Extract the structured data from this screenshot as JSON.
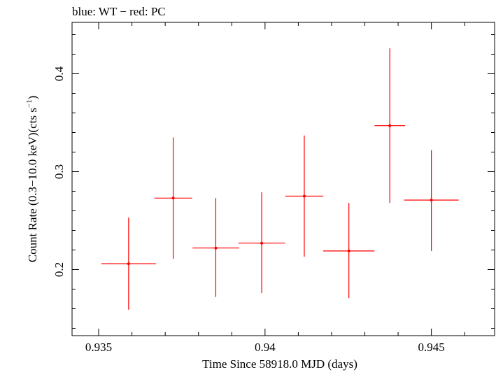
{
  "chart_data": {
    "type": "scatter",
    "title": "blue: WT − red: PC",
    "xlabel": "Time Since 58918.0 MJD (days)",
    "ylabel_main": "Count Rate (0.3−10.0 keV)(cts s",
    "ylabel_sup": "−1",
    "ylabel_close": ")",
    "xlim": [
      0.9342,
      0.9469
    ],
    "ylim": [
      0.1325,
      0.4525
    ],
    "x_ticks": [
      0.935,
      0.94,
      0.945
    ],
    "x_tick_labels": [
      "0.935",
      "0.94",
      "0.945"
    ],
    "y_ticks": [
      0.2,
      0.3,
      0.4
    ],
    "y_tick_labels": [
      "0.2",
      "0.3",
      "0.4"
    ],
    "grid": false,
    "series": [
      {
        "color": "#ff0000",
        "points": [
          {
            "x": 0.9359,
            "xerr": 0.00082,
            "y": 0.206,
            "ylo": 0.159,
            "yhi": 0.253
          },
          {
            "x": 0.93724,
            "xerr": 0.00057,
            "y": 0.273,
            "ylo": 0.211,
            "yhi": 0.335
          },
          {
            "x": 0.93852,
            "xerr": 0.0007,
            "y": 0.222,
            "ylo": 0.172,
            "yhi": 0.273
          },
          {
            "x": 0.9399,
            "xerr": 0.0007,
            "y": 0.227,
            "ylo": 0.176,
            "yhi": 0.279
          },
          {
            "x": 0.94118,
            "xerr": 0.00057,
            "y": 0.275,
            "ylo": 0.213,
            "yhi": 0.337
          },
          {
            "x": 0.94252,
            "xerr": 0.00077,
            "y": 0.219,
            "ylo": 0.171,
            "yhi": 0.268
          },
          {
            "x": 0.94375,
            "xerr": 0.00046,
            "y": 0.347,
            "ylo": 0.268,
            "yhi": 0.426
          },
          {
            "x": 0.945,
            "xerr": 0.00082,
            "y": 0.271,
            "ylo": 0.219,
            "yhi": 0.322
          }
        ]
      }
    ]
  }
}
